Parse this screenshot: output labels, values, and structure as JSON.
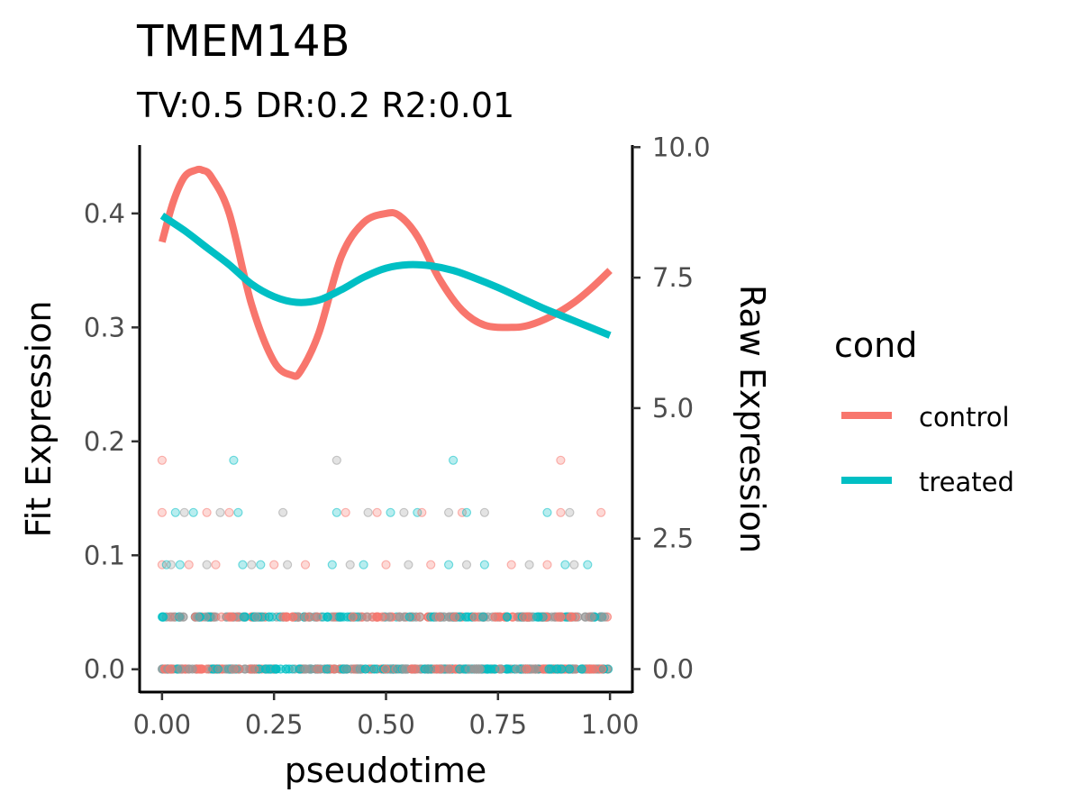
{
  "chart_data": {
    "type": "line",
    "title": "TMEM14B",
    "subtitle": "TV:0.5 DR:0.2 R2:0.01",
    "xlabel": "pseudotime",
    "ylabel": "Fit Expression",
    "y2label": "Raw Expression",
    "xlim": [
      -0.05,
      1.05
    ],
    "ylim": [
      -0.02,
      0.46
    ],
    "y2lim": [
      -0.44,
      10.04
    ],
    "x_ticks": [
      "0.00",
      "0.25",
      "0.50",
      "0.75",
      "1.00"
    ],
    "y_ticks": [
      "0.0",
      "0.1",
      "0.2",
      "0.3",
      "0.4"
    ],
    "y2_ticks": [
      "0.0",
      "2.5",
      "5.0",
      "7.5",
      "10.0"
    ],
    "legend": {
      "title": "cond",
      "position": "right"
    },
    "grid": false,
    "series": [
      {
        "name": "control",
        "color": "#F8766D",
        "x": [
          0.0,
          0.025,
          0.05,
          0.075,
          0.09,
          0.11,
          0.15,
          0.2,
          0.25,
          0.29,
          0.31,
          0.35,
          0.4,
          0.45,
          0.5,
          0.53,
          0.57,
          0.62,
          0.67,
          0.72,
          0.78,
          0.82,
          0.87,
          0.92,
          0.96,
          1.0
        ],
        "y": [
          0.375,
          0.41,
          0.432,
          0.438,
          0.438,
          0.432,
          0.4,
          0.32,
          0.27,
          0.258,
          0.262,
          0.295,
          0.362,
          0.392,
          0.4,
          0.398,
          0.38,
          0.342,
          0.315,
          0.302,
          0.3,
          0.302,
          0.31,
          0.322,
          0.335,
          0.35
        ]
      },
      {
        "name": "treated",
        "color": "#00BFC4",
        "x": [
          0.0,
          0.05,
          0.1,
          0.15,
          0.2,
          0.25,
          0.3,
          0.35,
          0.4,
          0.45,
          0.5,
          0.55,
          0.6,
          0.65,
          0.7,
          0.75,
          0.8,
          0.85,
          0.9,
          0.95,
          1.0
        ],
        "y": [
          0.398,
          0.385,
          0.37,
          0.355,
          0.338,
          0.327,
          0.322,
          0.324,
          0.333,
          0.344,
          0.352,
          0.355,
          0.354,
          0.35,
          0.343,
          0.335,
          0.326,
          0.317,
          0.309,
          0.301,
          0.293
        ]
      }
    ],
    "raw_points": {
      "levels": [
        0,
        1,
        2,
        3,
        4
      ],
      "point_colors": [
        "#F8766D",
        "#00BFC4",
        "#999999"
      ],
      "sparse_x": {
        "2": [
          0.0,
          0.01,
          0.02,
          0.04,
          0.06,
          0.1,
          0.12,
          0.18,
          0.2,
          0.22,
          0.25,
          0.28,
          0.32,
          0.38,
          0.42,
          0.45,
          0.5,
          0.55,
          0.6,
          0.64,
          0.68,
          0.72,
          0.78,
          0.82,
          0.86,
          0.9,
          0.92,
          0.95
        ],
        "3": [
          0.0,
          0.03,
          0.05,
          0.07,
          0.1,
          0.13,
          0.15,
          0.17,
          0.27,
          0.39,
          0.41,
          0.46,
          0.48,
          0.51,
          0.54,
          0.57,
          0.58,
          0.64,
          0.67,
          0.68,
          0.72,
          0.86,
          0.89,
          0.91,
          0.98
        ],
        "4": [
          0.0,
          0.16,
          0.39,
          0.65,
          0.89
        ]
      }
    }
  },
  "legend": {
    "title": "cond",
    "items": [
      {
        "label": "control",
        "color": "#F8766D"
      },
      {
        "label": "treated",
        "color": "#00BFC4"
      }
    ]
  },
  "colors": {
    "axis": "#000000",
    "tick_label": "#4d4d4d",
    "background": "#ffffff"
  }
}
